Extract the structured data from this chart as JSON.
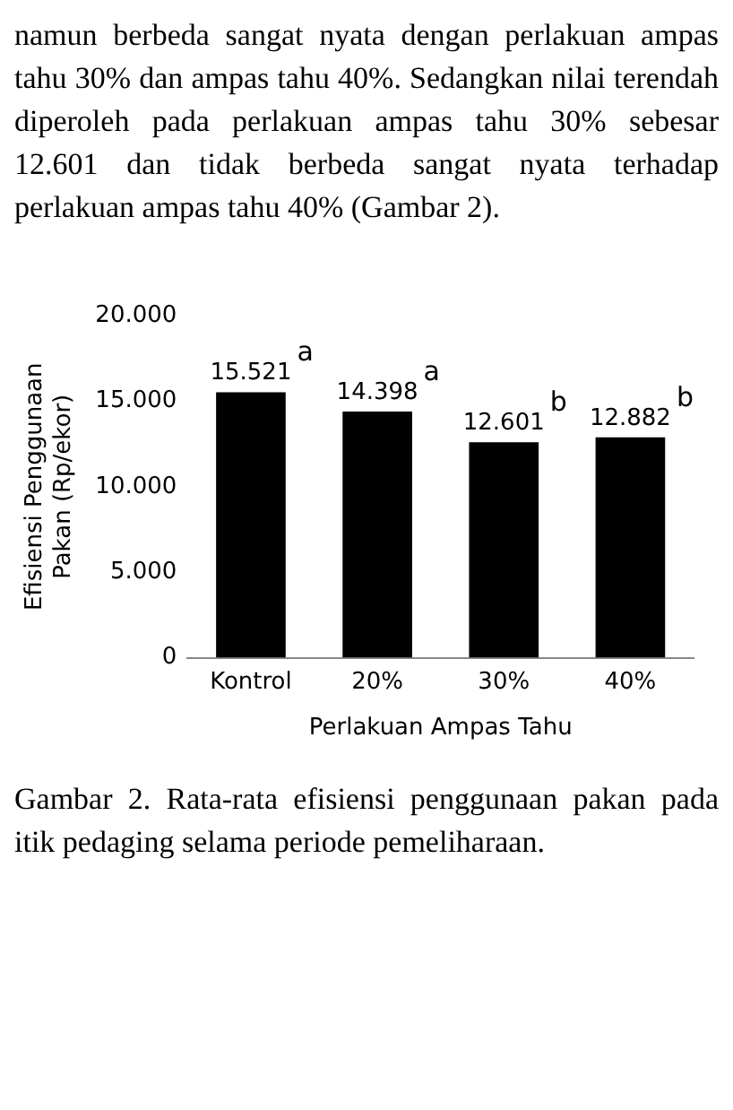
{
  "chart_data": {
    "type": "bar",
    "xlabel": "Perlakuan Ampas Tahu",
    "ylabel": "Efisiensi Penggunaan Pakan (Rp/ekor)",
    "categories": [
      "Kontrol",
      "20%",
      "30%",
      "40%"
    ],
    "values": [
      15521,
      14398,
      12601,
      12882
    ],
    "value_labels": [
      "15.521",
      "14.398",
      "12.601",
      "12.882"
    ],
    "color": "#000000",
    "ylim": [
      0,
      20000
    ],
    "yticks": [
      {
        "value": 0,
        "label": "0"
      },
      {
        "value": 5000,
        "label": "5.000"
      },
      {
        "value": 10000,
        "label": "10.000"
      },
      {
        "value": 15000,
        "label": "15.000"
      },
      {
        "value": 20000,
        "label": "20.000"
      }
    ],
    "grid": false,
    "legend": false,
    "annotations": [
      "namun berbeda sangat nyata dengan perlakuan ampas tahu 30% dan ampas tahu 40%. Sedangkan nilai terendah diperoleh pada perlakuan ampas tahu 30% sebesar 12.601 dan tidak berbeda sangat nyata terhadap perlakuan ampas tahu 40% (Gambar 2).",
      {
        "text": "a",
        "x": "Kontrol",
        "y": 15521
      },
      {
        "text": "a",
        "x": "20%",
        "y": 14398
      },
      {
        "text": "b",
        "x": "30%",
        "y": 12601
      },
      {
        "text": "b",
        "x": "40%",
        "y": 12882
      },
      "Gambar 2. Rata-rata efisiensi penggunaan pakan pada itik pedaging selama periode pemeliharaan."
    ]
  }
}
